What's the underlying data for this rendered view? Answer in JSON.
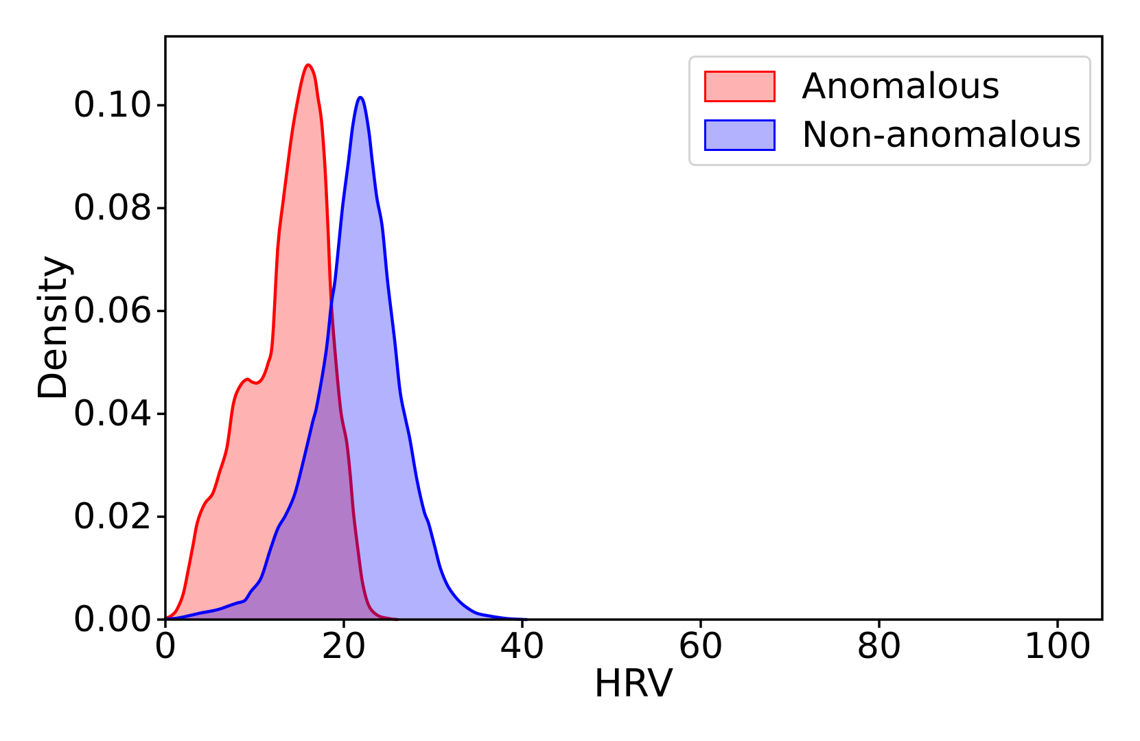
{
  "figure": {
    "background_color": "#ffffff",
    "axis_color": "#000000"
  },
  "chart_data": {
    "type": "area",
    "subtype": "kde-density",
    "title": "",
    "xlabel": "HRV",
    "ylabel": "Density",
    "xlim": [
      0,
      105
    ],
    "ylim": [
      0,
      0.1134
    ],
    "grid": false,
    "legend_position": "upper right",
    "x_ticks": [
      {
        "value": 0,
        "label": "0"
      },
      {
        "value": 20,
        "label": "20"
      },
      {
        "value": 40,
        "label": "40"
      },
      {
        "value": 60,
        "label": "60"
      },
      {
        "value": 80,
        "label": "80"
      },
      {
        "value": 100,
        "label": "100"
      }
    ],
    "y_ticks": [
      {
        "value": 0.0,
        "label": "0.00"
      },
      {
        "value": 0.02,
        "label": "0.02"
      },
      {
        "value": 0.04,
        "label": "0.04"
      },
      {
        "value": 0.06,
        "label": "0.06"
      },
      {
        "value": 0.08,
        "label": "0.08"
      },
      {
        "value": 0.1,
        "label": "0.10"
      }
    ],
    "series": [
      {
        "name": "Anomalous",
        "line_color": "#ff0000",
        "fill_color": "rgba(255,0,0,0.3)",
        "peak": {
          "x": 16.1,
          "density": 0.1078
        },
        "shoulder": {
          "x": 9.1,
          "density": 0.0467
        },
        "points": [
          [
            0,
            0.0002
          ],
          [
            0.7,
            0.0008
          ],
          [
            1.3,
            0.002
          ],
          [
            2,
            0.005
          ],
          [
            2.6,
            0.01
          ],
          [
            3.1,
            0.0145
          ],
          [
            3.6,
            0.019
          ],
          [
            4.4,
            0.0225
          ],
          [
            5.3,
            0.0245
          ],
          [
            6.1,
            0.0288
          ],
          [
            6.9,
            0.0335
          ],
          [
            7.6,
            0.0418
          ],
          [
            8.3,
            0.0452
          ],
          [
            9.1,
            0.0467
          ],
          [
            9.7,
            0.0462
          ],
          [
            10.3,
            0.046
          ],
          [
            10.9,
            0.047
          ],
          [
            11.5,
            0.0498
          ],
          [
            12,
            0.0542
          ],
          [
            12.6,
            0.0724
          ],
          [
            13.2,
            0.0814
          ],
          [
            14.2,
            0.0947
          ],
          [
            15,
            0.1025
          ],
          [
            15.6,
            0.1068
          ],
          [
            16.1,
            0.1078
          ],
          [
            16.7,
            0.1058
          ],
          [
            17.1,
            0.1015
          ],
          [
            17.5,
            0.0969
          ],
          [
            17.9,
            0.0875
          ],
          [
            18.2,
            0.0769
          ],
          [
            18.6,
            0.0614
          ],
          [
            19.2,
            0.0484
          ],
          [
            19.7,
            0.04
          ],
          [
            20.3,
            0.0347
          ],
          [
            20.7,
            0.0284
          ],
          [
            21.1,
            0.0204
          ],
          [
            21.6,
            0.0133
          ],
          [
            22.1,
            0.0071
          ],
          [
            22.8,
            0.0027
          ],
          [
            23.8,
            0.0008
          ],
          [
            25,
            0.0002
          ],
          [
            26,
            0
          ]
        ]
      },
      {
        "name": "Non-anomalous",
        "line_color": "#0000ff",
        "fill_color": "rgba(0,0,255,0.3)",
        "peak": {
          "x": 21.9,
          "density": 0.1015
        },
        "points": [
          [
            0,
            0.0001
          ],
          [
            1,
            0.0002
          ],
          [
            2,
            0.0005
          ],
          [
            3,
            0.0009
          ],
          [
            4,
            0.0013
          ],
          [
            5,
            0.0016
          ],
          [
            6,
            0.002
          ],
          [
            7,
            0.0026
          ],
          [
            8,
            0.0032
          ],
          [
            8.9,
            0.0037
          ],
          [
            9.6,
            0.0055
          ],
          [
            10.7,
            0.008
          ],
          [
            11.7,
            0.0133
          ],
          [
            12.6,
            0.0177
          ],
          [
            13.5,
            0.0204
          ],
          [
            14.5,
            0.0244
          ],
          [
            15.5,
            0.0311
          ],
          [
            16.5,
            0.0384
          ],
          [
            17,
            0.0418
          ],
          [
            18,
            0.052
          ],
          [
            18.6,
            0.0614
          ],
          [
            19,
            0.0658
          ],
          [
            19.5,
            0.0742
          ],
          [
            19.9,
            0.0809
          ],
          [
            20.5,
            0.0889
          ],
          [
            21,
            0.096
          ],
          [
            21.5,
            0.1005
          ],
          [
            21.9,
            0.1015
          ],
          [
            22.3,
            0.1
          ],
          [
            22.8,
            0.095
          ],
          [
            23.2,
            0.0889
          ],
          [
            23.7,
            0.082
          ],
          [
            24.3,
            0.0764
          ],
          [
            24.9,
            0.0658
          ],
          [
            25.7,
            0.0542
          ],
          [
            26.3,
            0.0444
          ],
          [
            26.9,
            0.0391
          ],
          [
            27.4,
            0.0351
          ],
          [
            28.2,
            0.0271
          ],
          [
            29,
            0.021
          ],
          [
            29.5,
            0.0187
          ],
          [
            30.2,
            0.0141
          ],
          [
            30.8,
            0.0101
          ],
          [
            31.6,
            0.0067
          ],
          [
            32.5,
            0.0044
          ],
          [
            33.5,
            0.0027
          ],
          [
            34.8,
            0.0013
          ],
          [
            36.3,
            0.0007
          ],
          [
            37.8,
            0.0003
          ],
          [
            39,
            0.0001
          ],
          [
            40.5,
            0
          ]
        ]
      }
    ],
    "crossing_point": {
      "x": 18.6,
      "density": 0.061
    }
  }
}
